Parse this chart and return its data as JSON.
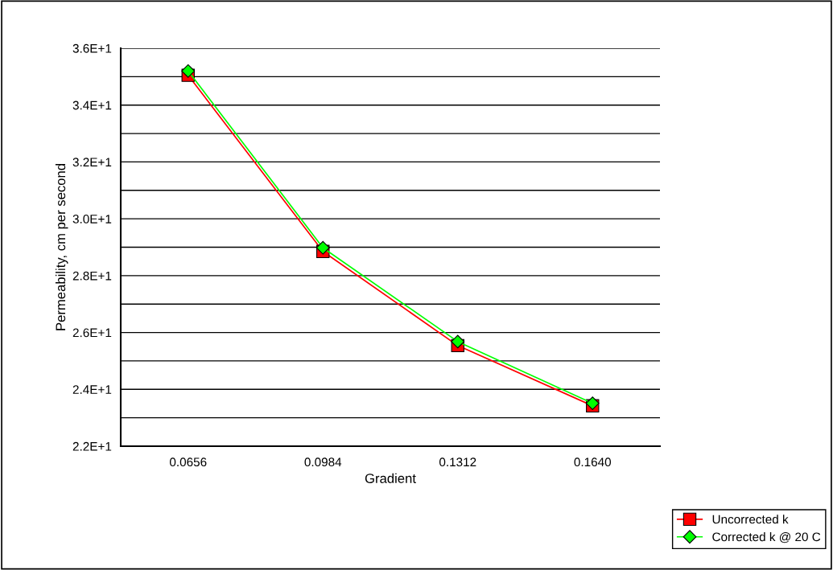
{
  "chart_data": {
    "type": "line",
    "xlabel": "Gradient",
    "ylabel": "Permeability, cm per second",
    "categories": [
      "0.0656",
      "0.0984",
      "0.1312",
      "0.1640"
    ],
    "series": [
      {
        "name": "Uncorrected k",
        "color": "#ff0000",
        "marker": "square",
        "values": [
          35.05,
          28.85,
          25.54,
          23.42
        ]
      },
      {
        "name": "Corrected k @ 20 C",
        "color": "#00ff00",
        "marker": "diamond",
        "values": [
          35.2,
          28.98,
          25.68,
          23.51
        ]
      }
    ],
    "ylim": [
      22,
      36
    ],
    "yticks": [
      {
        "value": 22,
        "label": "2.2E+1"
      },
      {
        "value": 23,
        "label": null
      },
      {
        "value": 24,
        "label": "2.4E+1"
      },
      {
        "value": 25,
        "label": null
      },
      {
        "value": 26,
        "label": "2.6E+1"
      },
      {
        "value": 27,
        "label": null
      },
      {
        "value": 28,
        "label": "2.8E+1"
      },
      {
        "value": 29,
        "label": null
      },
      {
        "value": 30,
        "label": "3.0E+1"
      },
      {
        "value": 31,
        "label": null
      },
      {
        "value": 32,
        "label": "3.2E+1"
      },
      {
        "value": 33,
        "label": null
      },
      {
        "value": 34,
        "label": "3.4E+1"
      },
      {
        "value": 35,
        "label": null
      },
      {
        "value": 36,
        "label": "3.6E+1"
      }
    ],
    "grid": "y",
    "legend": "bottom right",
    "line_style": "solid"
  }
}
